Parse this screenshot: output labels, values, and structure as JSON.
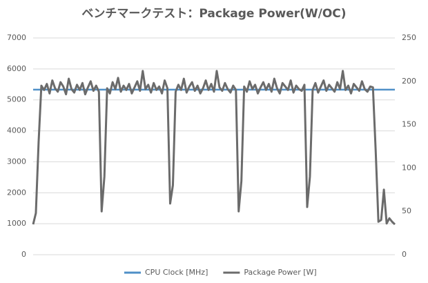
{
  "chart_data": {
    "type": "line",
    "title": "ベンチマークテスト：Package Power(W/OC)",
    "ylim": [
      0,
      7000
    ],
    "yticks": [
      0,
      1000,
      2000,
      3000,
      4000,
      5000,
      6000,
      7000
    ],
    "y2lim": [
      0,
      250
    ],
    "y2ticks": [
      0,
      50,
      100,
      150,
      200,
      250
    ],
    "grid": true,
    "legend": "bottom",
    "series": [
      {
        "name": "CPU Clock [MHz]",
        "color": "#4e8fc7",
        "values": [
          5330,
          5330,
          5330,
          5330,
          5330,
          5330,
          5330,
          5330,
          5330,
          5330,
          5330,
          5330,
          5330,
          5330,
          5330,
          5330,
          5330,
          5330,
          5330,
          5330,
          5330,
          5330,
          5330,
          5330,
          5330,
          5330,
          5330,
          5330,
          5330,
          5330,
          5330,
          5330,
          5330,
          5330,
          5330,
          5330,
          5330,
          5330,
          5330,
          5330,
          5330,
          5330,
          5330,
          5330,
          5330,
          5330,
          5330,
          5330,
          5330,
          5330,
          5330,
          5330,
          5330,
          5330,
          5330,
          5330,
          5330,
          5330,
          5330,
          5330,
          5330,
          5330,
          5330,
          5330,
          5330,
          5330,
          5330,
          5330,
          5330,
          5330,
          5330,
          5330,
          5330,
          5330,
          5330,
          5330,
          5330,
          5330,
          5330,
          5330,
          5330,
          5330,
          5330,
          5330,
          5330,
          5330,
          5330,
          5330,
          5330,
          5330,
          5330,
          5330,
          5330,
          5330,
          5330,
          5330,
          5330,
          5330,
          5330,
          5330,
          5330,
          5330,
          5330,
          5330,
          5330,
          5330,
          5330,
          5330,
          5330,
          5330,
          5330,
          5330,
          5330,
          5330,
          5330,
          5330,
          5330,
          5330,
          5330,
          5330,
          5330,
          5330,
          5330,
          5330,
          5330,
          5330,
          5330,
          5330,
          5330,
          5330,
          5330,
          5330,
          5330
        ]
      },
      {
        "name": "Package Power [W]",
        "color": "#6b6b6b",
        "axis": "y2",
        "values": [
          35,
          48,
          130,
          195,
          190,
          197,
          186,
          201,
          192,
          188,
          199,
          194,
          185,
          203,
          191,
          187,
          196,
          190,
          198,
          185,
          193,
          200,
          189,
          195,
          188,
          50,
          90,
          192,
          186,
          199,
          191,
          204,
          188,
          195,
          190,
          197,
          186,
          193,
          200,
          189,
          212,
          191,
          196,
          187,
          198,
          190,
          194,
          186,
          201,
          192,
          59,
          80,
          188,
          196,
          190,
          203,
          187,
          194,
          199,
          189,
          195,
          186,
          192,
          201,
          190,
          197,
          188,
          212,
          193,
          189,
          198,
          191,
          187,
          195,
          190,
          50,
          85,
          194,
          188,
          200,
          191,
          196,
          186,
          193,
          199,
          190,
          197,
          188,
          203,
          192,
          186,
          198,
          194,
          190,
          201,
          187,
          195,
          191,
          189,
          196,
          55,
          90,
          190,
          198,
          187,
          194,
          201,
          189,
          196,
          192,
          188,
          199,
          191,
          212,
          190,
          195,
          186,
          197,
          193,
          189,
          200,
          191,
          188,
          194,
          193,
          120,
          38,
          40,
          75,
          36,
          42,
          38,
          35
        ]
      }
    ]
  }
}
